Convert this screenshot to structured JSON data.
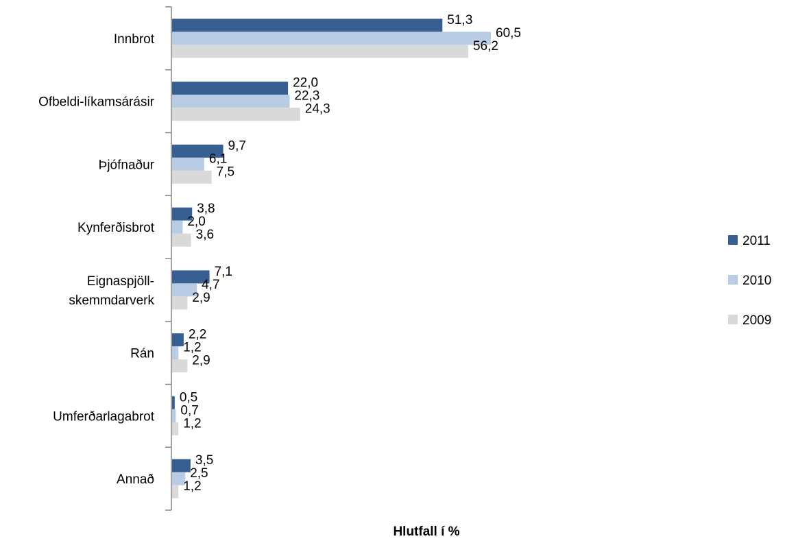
{
  "chart_data": {
    "type": "bar",
    "orientation": "horizontal",
    "categories": [
      "Innbrot",
      "Ofbeldi-líkamsárásir",
      "Þjófnaður",
      "Kynferðisbrot",
      "Eignaspjöll-skemmdarverk",
      "Rán",
      "Umferðarlagabrot",
      "Annað"
    ],
    "category_label_lines": [
      [
        "Innbrot"
      ],
      [
        "Ofbeldi-líkamsárásir"
      ],
      [
        "Þjófnaður"
      ],
      [
        "Kynferðisbrot"
      ],
      [
        "Eignaspjöll-",
        "skemmdarverk"
      ],
      [
        "Rán"
      ],
      [
        "Umferðarlagabrot"
      ],
      [
        "Annað"
      ]
    ],
    "series": [
      {
        "name": "2011",
        "color": "#375f92",
        "values": [
          51.3,
          22.0,
          9.7,
          3.8,
          7.1,
          2.2,
          0.5,
          3.5
        ],
        "labels": [
          "51,3",
          "22,0",
          "9,7",
          "3,8",
          "7,1",
          "2,2",
          "0,5",
          "3,5"
        ]
      },
      {
        "name": "2010",
        "color": "#b8cce4",
        "values": [
          60.5,
          22.3,
          6.1,
          2.0,
          4.7,
          1.2,
          0.7,
          2.5
        ],
        "labels": [
          "60,5",
          "22,3",
          "6,1",
          "2,0",
          "4,7",
          "1,2",
          "0,7",
          "2,5"
        ]
      },
      {
        "name": "2009",
        "color": "#d9d9d9",
        "values": [
          56.2,
          24.3,
          7.5,
          3.6,
          2.9,
          2.9,
          1.2,
          1.2
        ],
        "labels": [
          "56,2",
          "24,3",
          "7,5",
          "3,6",
          "2,9",
          "2,9",
          "1,2",
          "1,2"
        ]
      }
    ],
    "xlabel": "Hlutfall í %",
    "ylabel": "",
    "xlim": [
      0,
      60.5
    ],
    "grid": false,
    "legend_position": "right"
  }
}
